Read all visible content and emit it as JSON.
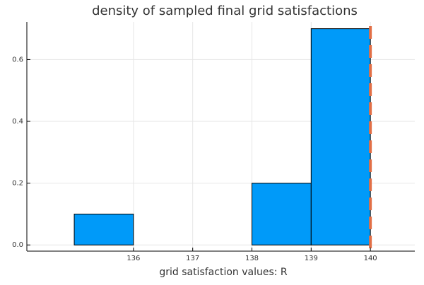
{
  "chart_data": {
    "type": "bar",
    "title": "density of sampled final grid satisfactions",
    "xlabel": "grid satisfaction values: R",
    "ylabel": "",
    "xlim": [
      134.2,
      140.75
    ],
    "ylim": [
      -0.02,
      0.722
    ],
    "xticks": [
      136,
      137,
      138,
      139,
      140
    ],
    "xtick_labels": [
      "136",
      "137",
      "138",
      "139",
      "140"
    ],
    "yticks": [
      0.0,
      0.2,
      0.4,
      0.6
    ],
    "ytick_labels": [
      "0.0",
      "0.2",
      "0.4",
      "0.6"
    ],
    "grid": true,
    "legend": "none",
    "bins": [
      {
        "x0": 135,
        "x1": 136,
        "value": 0.1
      },
      {
        "x0": 136,
        "x1": 137,
        "value": 0.0
      },
      {
        "x0": 137,
        "x1": 138,
        "value": 0.0
      },
      {
        "x0": 138,
        "x1": 139,
        "value": 0.2
      },
      {
        "x0": 139,
        "x1": 140,
        "value": 0.7
      }
    ],
    "reference_line": {
      "x": 140,
      "style": "dashed"
    },
    "colors": {
      "bar_fill": "#009af9",
      "bar_stroke": "#000000",
      "reference_line": "#e26f46",
      "axis": "#000000",
      "grid": "#e6e6e6",
      "text": "#333333"
    }
  }
}
